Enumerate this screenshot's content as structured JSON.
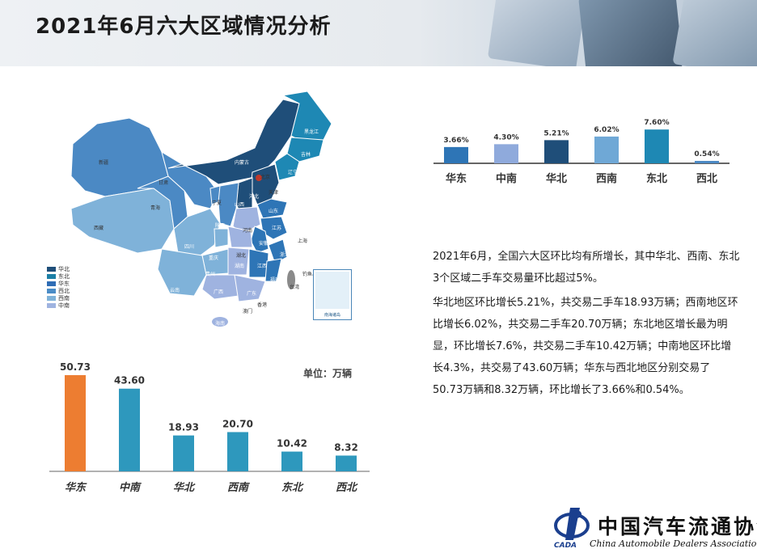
{
  "page": {
    "title": "2021年6月六大区域情况分析"
  },
  "map": {
    "legend": [
      {
        "label": "华北",
        "color": "#1f4e79"
      },
      {
        "label": "东北",
        "color": "#1c7fa6"
      },
      {
        "label": "华东",
        "color": "#2f6db5"
      },
      {
        "label": "西北",
        "color": "#4a8cc7"
      },
      {
        "label": "西南",
        "color": "#7fb2d9"
      },
      {
        "label": "中南",
        "color": "#9fb3e0"
      }
    ],
    "labels": [
      "新疆",
      "西藏",
      "青海",
      "甘肃",
      "内蒙古",
      "黑龙江",
      "吉林",
      "辽宁",
      "北京",
      "天津",
      "河北",
      "山西",
      "宁夏",
      "陕西",
      "山东",
      "河南",
      "江苏",
      "安徽",
      "上海",
      "四川",
      "重庆",
      "湖北",
      "浙江",
      "贵州",
      "湖南",
      "江西",
      "福建",
      "云南",
      "广西",
      "广东",
      "台湾",
      "香港",
      "澳门",
      "海南",
      "钓鱼岛"
    ],
    "inset_caption": "南海诸岛"
  },
  "colors": {
    "orange": "#ed7d31",
    "teal": "#2e98bd",
    "east": "#2e75b6",
    "central": "#8faadc",
    "north": "#1f4e79",
    "southwest": "#6fa8d6",
    "northeast": "#1e88b4",
    "northwest": "#4b89c4"
  },
  "chart_data": [
    {
      "type": "bar",
      "categories": [
        "华东",
        "中南",
        "华北",
        "西南",
        "东北",
        "西北"
      ],
      "values": [
        3.66,
        4.3,
        5.21,
        6.02,
        7.6,
        0.54
      ],
      "value_labels": [
        "3.66%",
        "4.30%",
        "5.21%",
        "6.02%",
        "7.60%",
        "0.54%"
      ],
      "bar_colors": [
        "#2e75b6",
        "#8faadc",
        "#1f4e79",
        "#6fa8d6",
        "#1e88b4",
        "#4b89c4"
      ],
      "ylim": [
        0,
        8
      ]
    },
    {
      "type": "bar",
      "categories": [
        "华东",
        "中南",
        "华北",
        "西南",
        "东北",
        "西北"
      ],
      "values": [
        50.73,
        43.6,
        18.93,
        20.7,
        10.42,
        8.32
      ],
      "value_labels": [
        "50.73",
        "43.60",
        "18.93",
        "20.70",
        "10.42",
        "8.32"
      ],
      "bar_colors": [
        "#ed7d31",
        "#2e98bd",
        "#2e98bd",
        "#2e98bd",
        "#2e98bd",
        "#2e98bd"
      ],
      "unit": "单位：万辆",
      "ylim": [
        0,
        55
      ]
    }
  ],
  "analysis": {
    "para1": "2021年6月，全国六大区环比均有所增长，其中华北、西南、东北3个区域二手车交易量环比超过5%。",
    "para2": "华北地区环比增长5.21%，共交易二手车18.93万辆；西南地区环比增长6.02%，共交易二手车20.70万辆；东北地区增长最为明显，环比增长7.6%，共交易二手车10.42万辆；中南地区环比增长4.3%，共交易了43.60万辆；华东与西北地区分别交易了50.73万辆和8.32万辆，环比增长了3.66%和0.54%。"
  },
  "logo": {
    "name_cn": "中国汽车流通协会",
    "name_en": "China Automobile Dealers Association",
    "abbr": "CADA"
  }
}
